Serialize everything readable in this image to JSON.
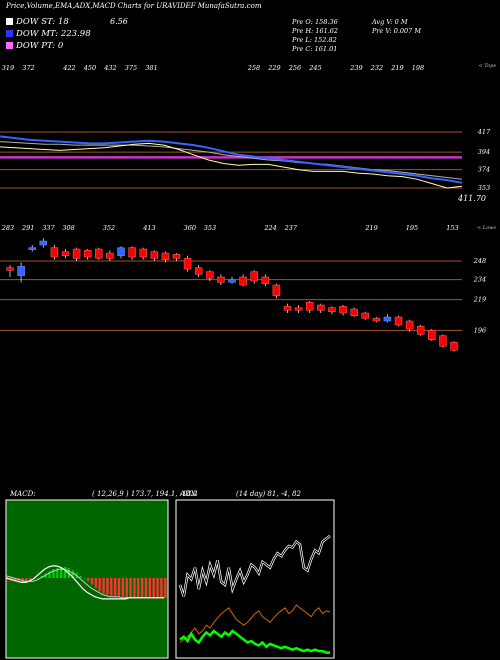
{
  "header": {
    "title": "Price,Volume,EMA,ADX,MACD Charts for URAVIDEF MunafaSutra.com"
  },
  "indicators": [
    {
      "label": "DOW ST: 18",
      "color": "#ffffff"
    },
    {
      "label": "DOW MT: 223.98",
      "color": "#3333ff"
    },
    {
      "label": "DOW PT: 0",
      "color": "#ff66ff"
    }
  ],
  "top_value": "6.56",
  "ohlc": {
    "open": "Pre  O: 158.36",
    "high": "Pre  H: 161.62",
    "low": "Pre  L: 152.82",
    "close": "Pre  C: 161.01",
    "avg_volume": "Avg V: 0  M",
    "pre_volume": "Pre  V: 0.007 M"
  },
  "colors": {
    "ema_fast": "#3366ff",
    "ema_mid": "#ffffff",
    "dow_pt": "#cc33cc",
    "level_line": "#a0522d",
    "candle_up": "#3366ff",
    "candle_down": "#ff0000",
    "macd_bg": "#006600",
    "macd_hist_neg": "#ff3333",
    "macd_hist_pos": "#00cc00",
    "adx_di_plus": "#00ff00",
    "adx_di_minus": "#cc6600"
  },
  "chart_data": [
    {
      "type": "line",
      "name": "ema-panel",
      "top_label": "< Tops",
      "top_numbers": [
        "319",
        "372",
        "",
        "422",
        "450",
        "432",
        "375",
        "381",
        "",
        "",
        "",
        "",
        "258",
        "229",
        "256",
        "245",
        "",
        "239",
        "232",
        "219",
        "198"
      ],
      "axis_labels": [
        "417",
        "394",
        "374",
        "353"
      ],
      "axis_values": [
        417,
        394,
        374,
        353
      ],
      "current_price_label": "411.70",
      "ylim": [
        345,
        425
      ],
      "ema_fast": [
        412,
        410,
        408,
        407,
        406,
        405,
        404,
        404,
        405,
        406,
        407,
        406,
        404,
        402,
        399,
        395,
        391,
        389,
        387,
        385,
        383,
        381,
        379,
        377,
        375,
        373,
        371,
        369,
        367,
        364,
        362,
        359
      ],
      "ema_slow": [
        406,
        405,
        404,
        403,
        403,
        402,
        402,
        402,
        402,
        402,
        401,
        400,
        398,
        396,
        394,
        391,
        389,
        387,
        385,
        384,
        382,
        381,
        380,
        378,
        376,
        374,
        373,
        371,
        369,
        367,
        365,
        363
      ],
      "price_line": [
        400,
        399,
        398,
        397,
        396,
        397,
        398,
        399,
        401,
        403,
        404,
        402,
        397,
        391,
        385,
        381,
        379,
        380,
        380,
        377,
        374,
        372,
        372,
        372,
        370,
        369,
        367,
        366,
        363,
        358,
        353,
        355
      ],
      "dow_pt_level": 388
    },
    {
      "type": "bar",
      "name": "candles",
      "top_label": "< Lows",
      "low_numbers": [
        "283",
        "291",
        "337",
        "308",
        "",
        "352",
        "",
        "413",
        "",
        "360",
        "353",
        "",
        "",
        "224",
        "237",
        "",
        "",
        "",
        "219",
        "",
        "195",
        "",
        "153"
      ],
      "axis_labels": [
        "248",
        "234",
        "219",
        "196"
      ],
      "axis_values": [
        248,
        234,
        219,
        196
      ],
      "ylim": [
        170,
        275
      ],
      "candles": [
        {
          "o": 243,
          "c": 241,
          "h": 245,
          "l": 236
        },
        {
          "o": 237,
          "c": 244,
          "h": 247,
          "l": 232
        },
        {
          "o": 257,
          "c": 258,
          "h": 260,
          "l": 255
        },
        {
          "o": 260,
          "c": 263,
          "h": 265,
          "l": 258
        },
        {
          "o": 258,
          "c": 251,
          "h": 260,
          "l": 249
        },
        {
          "o": 255,
          "c": 252,
          "h": 257,
          "l": 250
        },
        {
          "o": 257,
          "c": 250,
          "h": 258,
          "l": 248
        },
        {
          "o": 256,
          "c": 251,
          "h": 257,
          "l": 249
        },
        {
          "o": 257,
          "c": 250,
          "h": 258,
          "l": 249
        },
        {
          "o": 254,
          "c": 250,
          "h": 256,
          "l": 248
        },
        {
          "o": 252,
          "c": 258,
          "h": 259,
          "l": 250
        },
        {
          "o": 258,
          "c": 251,
          "h": 259,
          "l": 249
        },
        {
          "o": 257,
          "c": 251,
          "h": 258,
          "l": 249
        },
        {
          "o": 255,
          "c": 250,
          "h": 256,
          "l": 248
        },
        {
          "o": 254,
          "c": 249,
          "h": 255,
          "l": 247
        },
        {
          "o": 253,
          "c": 250,
          "h": 254,
          "l": 248
        },
        {
          "o": 250,
          "c": 242,
          "h": 252,
          "l": 240
        },
        {
          "o": 243,
          "c": 238,
          "h": 245,
          "l": 236
        },
        {
          "o": 240,
          "c": 235,
          "h": 241,
          "l": 233
        },
        {
          "o": 236,
          "c": 232,
          "h": 238,
          "l": 230
        },
        {
          "o": 232,
          "c": 234,
          "h": 236,
          "l": 231
        },
        {
          "o": 236,
          "c": 230,
          "h": 238,
          "l": 229
        },
        {
          "o": 240,
          "c": 233,
          "h": 241,
          "l": 231
        },
        {
          "o": 236,
          "c": 231,
          "h": 238,
          "l": 229
        },
        {
          "o": 230,
          "c": 222,
          "h": 231,
          "l": 220
        },
        {
          "o": 214,
          "c": 211,
          "h": 216,
          "l": 209
        },
        {
          "o": 213,
          "c": 211,
          "h": 215,
          "l": 209
        },
        {
          "o": 217,
          "c": 211,
          "h": 218,
          "l": 209
        },
        {
          "o": 215,
          "c": 211,
          "h": 216,
          "l": 209
        },
        {
          "o": 213,
          "c": 210,
          "h": 214,
          "l": 208
        },
        {
          "o": 214,
          "c": 209,
          "h": 215,
          "l": 207
        },
        {
          "o": 212,
          "c": 207,
          "h": 213,
          "l": 206
        },
        {
          "o": 209,
          "c": 205,
          "h": 210,
          "l": 204
        },
        {
          "o": 205,
          "c": 203,
          "h": 206,
          "l": 202
        },
        {
          "o": 203,
          "c": 206,
          "h": 208,
          "l": 202
        },
        {
          "o": 206,
          "c": 200,
          "h": 207,
          "l": 199
        },
        {
          "o": 203,
          "c": 197,
          "h": 204,
          "l": 195
        },
        {
          "o": 199,
          "c": 193,
          "h": 200,
          "l": 192
        },
        {
          "o": 196,
          "c": 189,
          "h": 197,
          "l": 188
        },
        {
          "o": 192,
          "c": 184,
          "h": 193,
          "l": 183
        },
        {
          "o": 187,
          "c": 181,
          "h": 188,
          "l": 180
        }
      ]
    },
    {
      "type": "bar",
      "name": "macd",
      "label": "MACD:",
      "params": "( 12,26,9 ) 173.7,  194.1,  -18.4",
      "ylim": [
        -30,
        30
      ],
      "histogram": [
        -2,
        -3,
        -3,
        -4,
        -4,
        -3,
        -2,
        -1,
        0,
        2,
        4,
        6,
        8,
        9,
        10,
        10,
        9,
        7,
        5,
        2,
        0,
        -3,
        -6,
        -9,
        -12,
        -14,
        -15,
        -16,
        -16,
        -17,
        -17,
        -18,
        -18,
        -18,
        -18,
        -18,
        -18,
        -18,
        -18,
        -18,
        -18,
        -18
      ],
      "macd_line": [
        0,
        -1,
        -2,
        -3,
        -4,
        -4,
        -3,
        -1,
        2,
        5,
        8,
        10,
        11,
        11,
        10,
        8,
        5,
        2,
        -2,
        -6,
        -10,
        -13,
        -15,
        -17,
        -18,
        -19,
        -19,
        -19,
        -19,
        -19,
        -19,
        -19,
        -18,
        -18,
        -18,
        -18,
        -18,
        -18,
        -18,
        -18,
        -18,
        -18
      ],
      "signal_line": [
        2,
        1,
        0,
        -1,
        -2,
        -3,
        -3,
        -3,
        -2,
        0,
        2,
        4,
        6,
        7,
        8,
        8,
        7,
        5,
        3,
        0,
        -3,
        -6,
        -9,
        -11,
        -13,
        -15,
        -16,
        -17,
        -17,
        -17,
        -18,
        -18,
        -18,
        -18,
        -18,
        -18,
        -18,
        -18,
        -18,
        -18,
        -18,
        -18
      ]
    },
    {
      "type": "line",
      "name": "adx",
      "label": "ADX",
      "params": "(14  day) 81,  -4,  82",
      "ylim": [
        0,
        100
      ],
      "adx": [
        48,
        40,
        55,
        52,
        60,
        45,
        58,
        50,
        62,
        55,
        65,
        50,
        48,
        60,
        45,
        52,
        58,
        50,
        55,
        62,
        60,
        56,
        64,
        62,
        60,
        66,
        70,
        68,
        72,
        75,
        74,
        78,
        76,
        60,
        58,
        66,
        72,
        70,
        78,
        80,
        82
      ],
      "di_plus": [
        10,
        12,
        9,
        14,
        10,
        8,
        12,
        15,
        13,
        16,
        14,
        12,
        15,
        13,
        16,
        14,
        12,
        10,
        8,
        9,
        7,
        6,
        8,
        5,
        7,
        6,
        5,
        4,
        5,
        4,
        3,
        4,
        3,
        2,
        3,
        2,
        3,
        2,
        2,
        1,
        1
      ],
      "di_minus": [
        8,
        10,
        12,
        15,
        18,
        14,
        16,
        20,
        18,
        22,
        25,
        28,
        30,
        32,
        28,
        24,
        22,
        20,
        22,
        25,
        28,
        30,
        26,
        24,
        22,
        25,
        28,
        30,
        32,
        28,
        30,
        34,
        32,
        30,
        28,
        26,
        30,
        32,
        28,
        30,
        29
      ]
    }
  ]
}
